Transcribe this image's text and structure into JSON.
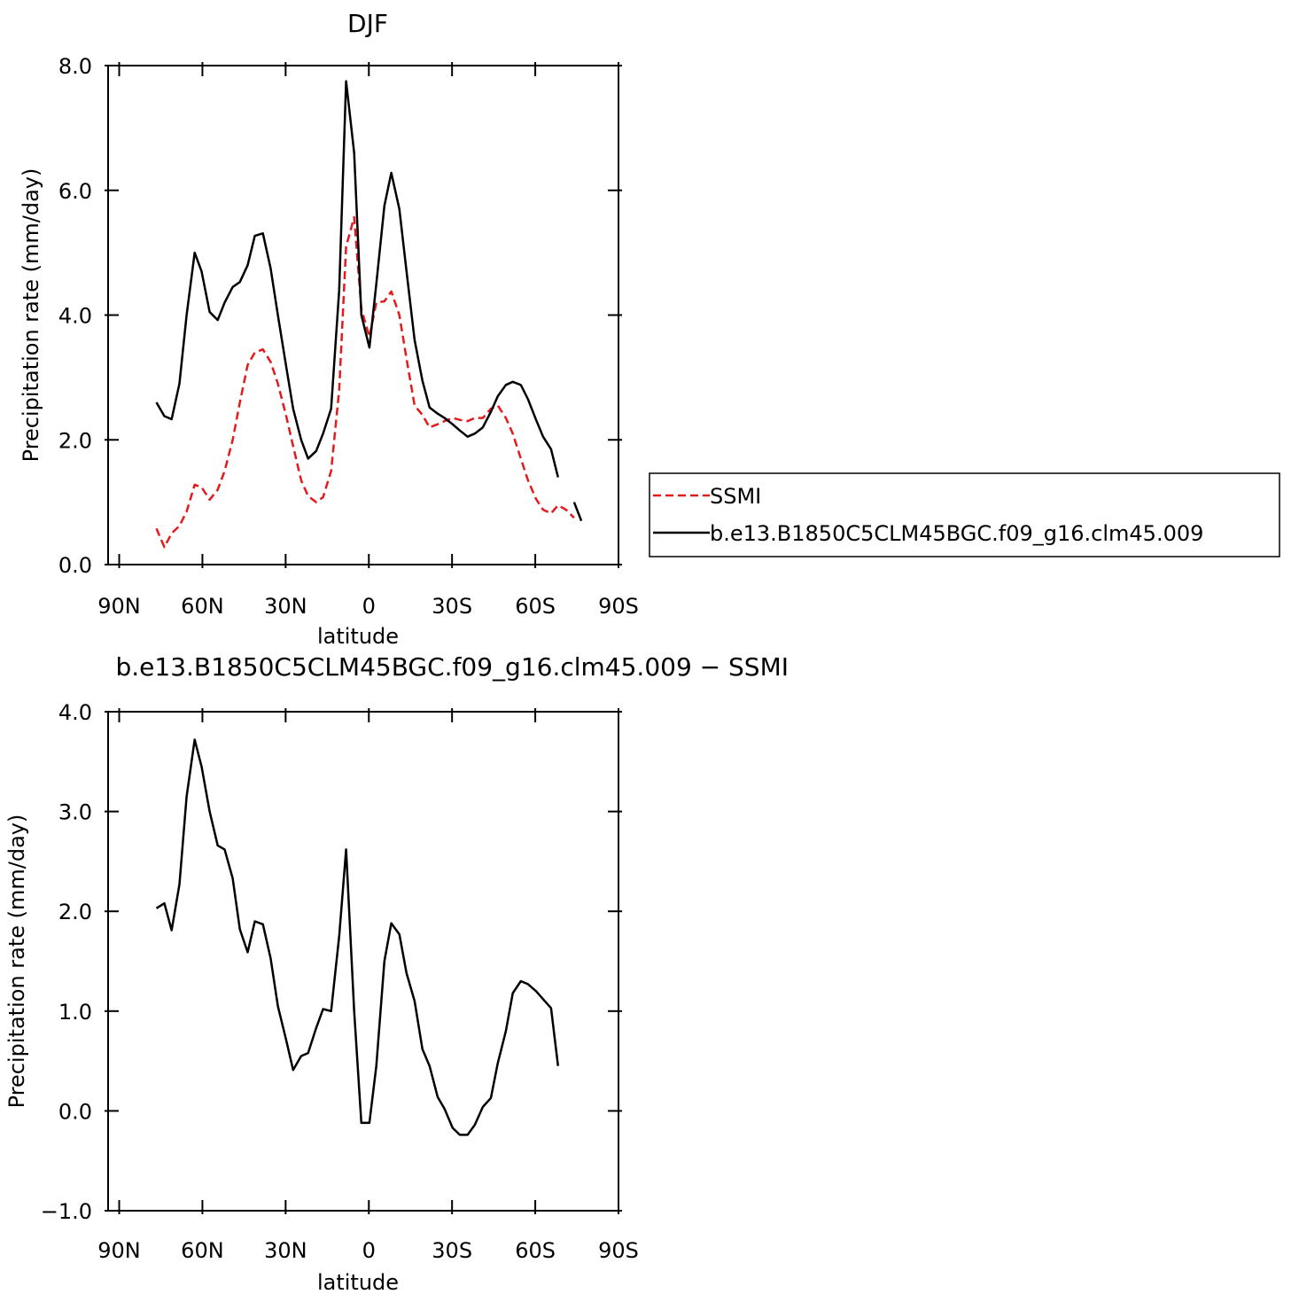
{
  "chart_data": [
    {
      "type": "line",
      "title": "DJF",
      "xlabel": "latitude",
      "ylabel": "Precipitation rate (mm/day)",
      "x": [
        76.6,
        73.7,
        71.1,
        68.3,
        65.7,
        62.8,
        60.3,
        57.4,
        54.5,
        52.0,
        49.1,
        46.5,
        43.7,
        41.1,
        38.2,
        35.4,
        32.8,
        29.9,
        27.3,
        24.4,
        21.9,
        19.0,
        16.5,
        13.6,
        10.7,
        8.2,
        5.3,
        2.7,
        -0.2,
        -2.7,
        -5.6,
        -8.1,
        -11.0,
        -13.6,
        -16.5,
        -19.3,
        -21.9,
        -24.8,
        -27.3,
        -30.2,
        -32.8,
        -35.6,
        -38.2,
        -41.1,
        -44.0,
        -46.5,
        -49.4,
        -51.9,
        -54.8,
        -57.4,
        -60.3,
        -62.8,
        -65.7,
        -68.2,
        -71.1,
        -74.0,
        -76.6
      ],
      "series": [
        {
          "name": "SSMI",
          "color": "#e41a1c",
          "dash": true,
          "values": [
            0.58,
            0.28,
            0.5,
            0.62,
            0.85,
            1.28,
            1.24,
            1.04,
            1.2,
            1.5,
            2.0,
            2.6,
            3.2,
            3.4,
            3.45,
            3.25,
            2.9,
            2.4,
            1.9,
            1.35,
            1.1,
            1.0,
            1.08,
            1.5,
            2.8,
            5.1,
            5.57,
            4.1,
            3.65,
            4.2,
            4.22,
            4.38,
            4.0,
            3.3,
            2.55,
            2.4,
            2.2,
            2.25,
            2.3,
            2.35,
            2.32,
            2.3,
            2.35,
            2.35,
            2.5,
            2.55,
            2.35,
            2.1,
            1.7,
            1.35,
            1.05,
            0.88,
            0.82,
            0.95,
            0.88,
            0.75,
            null
          ]
        },
        {
          "name": "b.e13.B1850C5CLM45BGC.f09_g16.clm45.009",
          "color": "#000000",
          "dash": false,
          "values": [
            2.6,
            2.38,
            2.33,
            2.9,
            4.0,
            5.0,
            4.7,
            4.05,
            3.92,
            4.2,
            4.45,
            4.53,
            4.8,
            5.27,
            5.31,
            4.75,
            4.0,
            3.2,
            2.5,
            2.0,
            1.7,
            1.82,
            2.1,
            2.5,
            4.4,
            7.75,
            6.6,
            4.0,
            3.48,
            4.5,
            5.75,
            6.28,
            5.7,
            4.7,
            3.6,
            2.95,
            2.52,
            2.42,
            2.35,
            2.25,
            2.15,
            2.05,
            2.1,
            2.2,
            2.45,
            2.7,
            2.88,
            2.93,
            2.88,
            2.65,
            2.32,
            2.05,
            1.85,
            1.4,
            null,
            1.0,
            0.7
          ]
        }
      ],
      "xlim": [
        94,
        -90
      ],
      "xticks": [
        {
          "value": 90,
          "label": "90N"
        },
        {
          "value": 60,
          "label": "60N"
        },
        {
          "value": 30,
          "label": "30N"
        },
        0,
        {
          "value": -30,
          "label": "30S"
        },
        {
          "value": -60,
          "label": "60S"
        },
        {
          "value": -90,
          "label": "90S"
        }
      ],
      "ylim": [
        0,
        8
      ],
      "yticks": [
        {
          "value": 0,
          "label": "0.0"
        },
        {
          "value": 2,
          "label": "2.0"
        },
        {
          "value": 4,
          "label": "4.0"
        },
        {
          "value": 6,
          "label": "6.0"
        },
        {
          "value": 8,
          "label": "8.0"
        }
      ],
      "legend": "right"
    },
    {
      "type": "line",
      "title": "b.e13.B1850C5CLM45BGC.f09_g16.clm45.009 − SSMI",
      "xlabel": "latitude",
      "ylabel": "Precipitation rate (mm/day)",
      "x": [
        76.6,
        73.7,
        71.1,
        68.3,
        65.7,
        62.8,
        60.3,
        57.4,
        54.5,
        52.0,
        49.1,
        46.5,
        43.7,
        41.1,
        38.2,
        35.4,
        32.8,
        29.9,
        27.3,
        24.4,
        21.9,
        19.0,
        16.5,
        13.6,
        10.7,
        8.2,
        5.3,
        2.7,
        -0.2,
        -2.7,
        -5.6,
        -8.1,
        -11.0,
        -13.6,
        -16.5,
        -19.3,
        -21.9,
        -24.8,
        -27.3,
        -30.2,
        -32.8,
        -35.6,
        -38.2,
        -41.1,
        -44.0,
        -46.5,
        -49.4,
        -51.9,
        -54.8,
        -57.4,
        -60.3,
        -62.8,
        -65.7,
        -68.2,
        -71.1,
        -74.0,
        -76.6
      ],
      "values": [
        2.03,
        2.08,
        1.81,
        2.27,
        3.15,
        3.72,
        3.45,
        3.0,
        2.66,
        2.62,
        2.33,
        1.82,
        1.59,
        1.9,
        1.87,
        1.53,
        1.05,
        0.72,
        0.41,
        0.55,
        0.58,
        0.83,
        1.02,
        1.0,
        1.75,
        2.62,
        1.0,
        -0.12,
        -0.12,
        0.45,
        1.5,
        1.88,
        1.77,
        1.38,
        1.1,
        0.62,
        0.45,
        0.14,
        0.02,
        -0.17,
        -0.24,
        -0.24,
        -0.14,
        0.04,
        0.13,
        0.48,
        0.8,
        1.18,
        1.3,
        1.27,
        1.2,
        1.12,
        1.03,
        0.45,
        null,
        null,
        null
      ],
      "color": "#000000",
      "xlim": [
        94,
        -90
      ],
      "xticks": [
        {
          "value": 90,
          "label": "90N"
        },
        {
          "value": 60,
          "label": "60N"
        },
        {
          "value": 30,
          "label": "30N"
        },
        0,
        {
          "value": -30,
          "label": "30S"
        },
        {
          "value": -60,
          "label": "60S"
        },
        {
          "value": -90,
          "label": "90S"
        }
      ],
      "ylim": [
        -1,
        4
      ],
      "yticks": [
        {
          "value": -1,
          "label": "−1.0"
        },
        {
          "value": 0,
          "label": "0.0"
        },
        {
          "value": 1,
          "label": "1.0"
        },
        {
          "value": 2,
          "label": "2.0"
        },
        {
          "value": 3,
          "label": "3.0"
        },
        {
          "value": 4,
          "label": "4.0"
        }
      ]
    }
  ]
}
